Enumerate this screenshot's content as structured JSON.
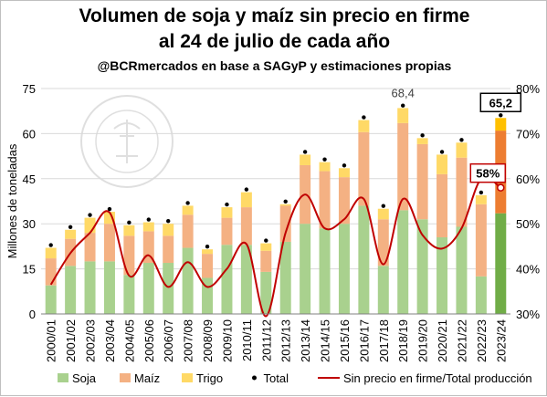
{
  "title_line1": "Volumen de soja y maíz sin precio en firme",
  "title_line2": "al 24 de julio de cada año",
  "subtitle": "@BCRmercados en base a SAGyP y estimaciones propias",
  "watermark_text": "BOLSA DE COMERCIO DE ROSARIO",
  "chart_data": {
    "type": "bar",
    "stacked": true,
    "ylabel": "Millones de toneladas",
    "y_ticks": [
      "0",
      "15",
      "30",
      "45",
      "60",
      "75"
    ],
    "y2_ticks": [
      "30%",
      "40%",
      "50%",
      "60%",
      "70%",
      "80%"
    ],
    "ylim": [
      0,
      75
    ],
    "y2lim": [
      30,
      80
    ],
    "grid": true,
    "legend_position": "bottom",
    "categories": [
      "2000/01",
      "2001/02",
      "2002/03",
      "2003/04",
      "2004/05",
      "2005/06",
      "2006/07",
      "2007/08",
      "2008/09",
      "2009/10",
      "2010/11",
      "2011/12",
      "2012/13",
      "2013/14",
      "2014/15",
      "2015/16",
      "2016/17",
      "2017/18",
      "2018/19",
      "2019/20",
      "2020/21",
      "2021/22",
      "2022/23",
      "2023/24"
    ],
    "series": [
      {
        "name": "Soja",
        "color": "#a9d18e",
        "values": [
          9.5,
          16,
          17.5,
          17.5,
          13,
          17,
          17,
          22,
          12,
          23,
          23,
          14,
          24,
          30,
          28.5,
          30,
          36,
          16,
          34.5,
          31.5,
          25.5,
          29,
          12.5,
          33.5
        ]
      },
      {
        "name": "Maíz",
        "color": "#f4b183",
        "values": [
          9,
          9,
          9.5,
          12.5,
          13,
          10.5,
          9,
          11,
          8,
          9,
          12.5,
          7,
          12,
          19.5,
          19,
          15.5,
          24.5,
          15.5,
          29,
          25,
          21,
          23,
          24,
          27.5
        ]
      },
      {
        "name": "Trigo",
        "color": "#ffd966",
        "values": [
          3.5,
          3,
          5,
          4,
          3.5,
          3,
          4,
          3,
          1.5,
          3.5,
          5,
          2.5,
          0.5,
          3.5,
          3,
          3,
          4,
          3.5,
          5,
          2,
          6.5,
          5,
          3,
          4.2
        ]
      }
    ],
    "last_bar_colors": {
      "Soja": "#70ad47",
      "Maíz": "#ed7d31",
      "Trigo": "#ffc000"
    },
    "totals": {
      "name": "Total",
      "values": [
        22,
        28,
        32,
        34,
        29.5,
        30.5,
        30,
        36,
        21.5,
        35.5,
        40.5,
        23.5,
        36.5,
        53,
        50.5,
        48.5,
        64.5,
        35,
        68.4,
        58.5,
        53,
        57,
        39.5,
        65.2
      ]
    },
    "ratio": {
      "name": "Sin precio en firme/Total producción",
      "color": "#c00000",
      "values": [
        36.5,
        43.5,
        48,
        52.5,
        38.5,
        43,
        36,
        41.5,
        36,
        40,
        45.5,
        29.5,
        48,
        56.5,
        49,
        51,
        55.5,
        41,
        55.5,
        47.5,
        44.5,
        49,
        60,
        58
      ]
    },
    "annotations": {
      "max_label": "68,4",
      "last_total_label": "65,2",
      "last_ratio_label": "58%"
    }
  }
}
